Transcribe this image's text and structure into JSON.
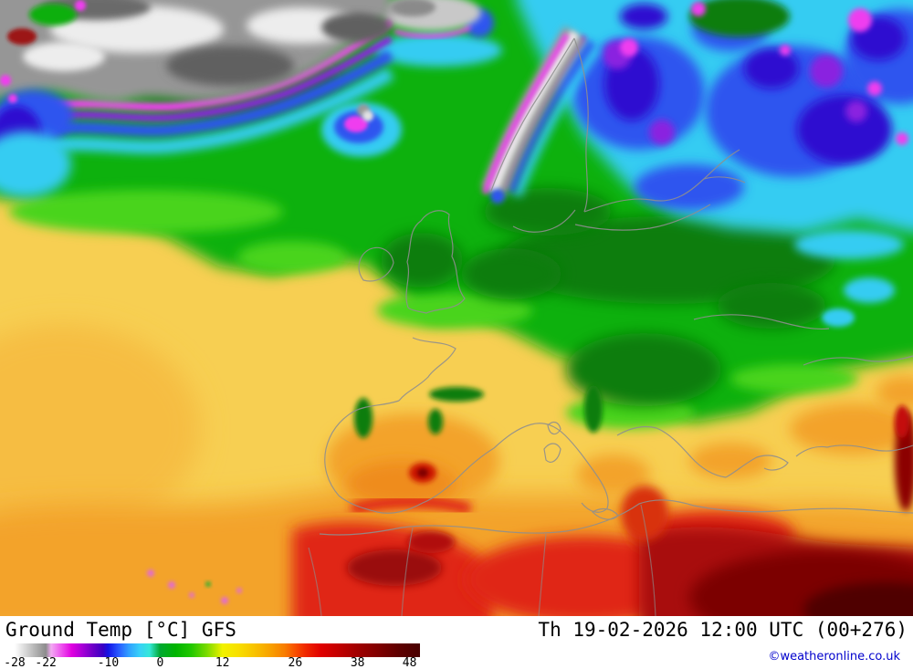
{
  "footer": {
    "title": "Ground Temp [°C] GFS",
    "datetime": "Th 19-02-2026 12:00 UTC (00+276)",
    "copyright": "©weatheronline.co.uk"
  },
  "colorbar": {
    "min": -28,
    "max": 50,
    "ticks": [
      {
        "value": -28,
        "label": "-28"
      },
      {
        "value": -22,
        "label": "-22"
      },
      {
        "value": -10,
        "label": "-10"
      },
      {
        "value": 0,
        "label": "0"
      },
      {
        "value": 12,
        "label": "12"
      },
      {
        "value": 26,
        "label": "26"
      },
      {
        "value": 38,
        "label": "38"
      },
      {
        "value": 48,
        "label": "48"
      }
    ],
    "stops": [
      {
        "v": -28,
        "c": "#ffffff"
      },
      {
        "v": -26,
        "c": "#d9d9d9"
      },
      {
        "v": -24,
        "c": "#b3b3b3"
      },
      {
        "v": -22,
        "c": "#8c8c8c"
      },
      {
        "v": -21,
        "c": "#f2aaf2"
      },
      {
        "v": -19,
        "c": "#ee55ee"
      },
      {
        "v": -17,
        "c": "#e000e0"
      },
      {
        "v": -15,
        "c": "#a800d8"
      },
      {
        "v": -13,
        "c": "#7000c8"
      },
      {
        "v": -11,
        "c": "#3a00c4"
      },
      {
        "v": -10,
        "c": "#1414e6"
      },
      {
        "v": -8,
        "c": "#2858ff"
      },
      {
        "v": -6,
        "c": "#30a0ff"
      },
      {
        "v": -4,
        "c": "#38d0f8"
      },
      {
        "v": -2,
        "c": "#35e8d8"
      },
      {
        "v": 0,
        "c": "#00a830"
      },
      {
        "v": 3,
        "c": "#00b400"
      },
      {
        "v": 6,
        "c": "#22c800"
      },
      {
        "v": 9,
        "c": "#7ada00"
      },
      {
        "v": 11,
        "c": "#c8ea00"
      },
      {
        "v": 12,
        "c": "#f2f200"
      },
      {
        "v": 15,
        "c": "#f8e000"
      },
      {
        "v": 18,
        "c": "#f8c400"
      },
      {
        "v": 21,
        "c": "#f8a400"
      },
      {
        "v": 24,
        "c": "#f87c00"
      },
      {
        "v": 26,
        "c": "#f85000"
      },
      {
        "v": 28,
        "c": "#f02800"
      },
      {
        "v": 31,
        "c": "#e00000"
      },
      {
        "v": 34,
        "c": "#c60000"
      },
      {
        "v": 38,
        "c": "#a00000"
      },
      {
        "v": 42,
        "c": "#800000"
      },
      {
        "v": 46,
        "c": "#5e0000"
      },
      {
        "v": 50,
        "c": "#480000"
      }
    ]
  }
}
